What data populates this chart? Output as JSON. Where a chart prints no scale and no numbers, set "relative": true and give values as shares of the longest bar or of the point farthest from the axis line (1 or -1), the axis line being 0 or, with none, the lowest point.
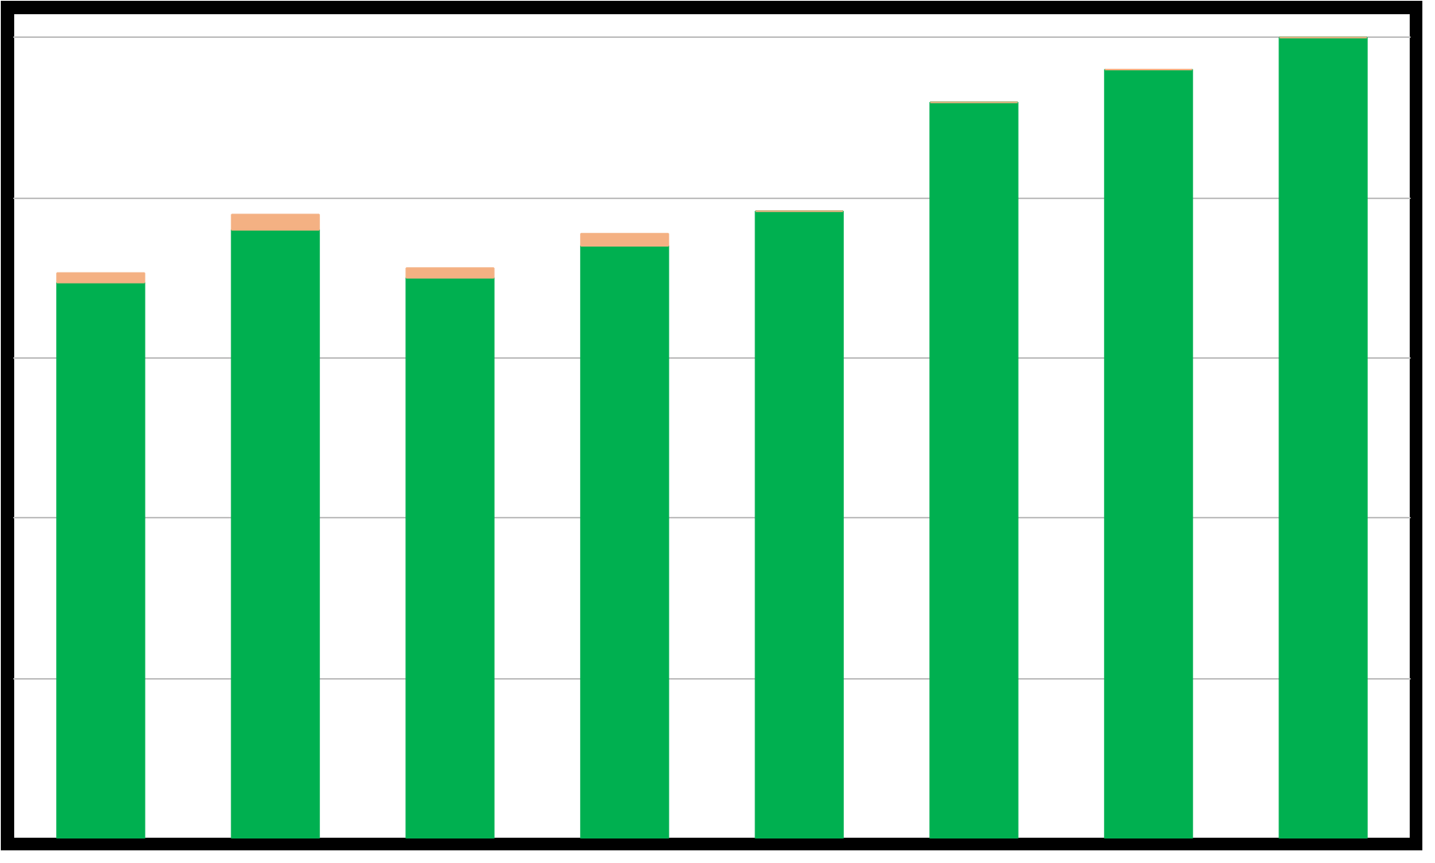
{
  "chart_data": {
    "type": "bar",
    "relative": true,
    "stacked": true,
    "grid": "y",
    "categories": [
      null,
      null,
      null,
      null,
      null,
      null,
      null,
      null
    ],
    "series": [
      {
        "color": "#00b050",
        "values": [
          0.694,
          0.76,
          0.7,
          0.74,
          0.783,
          0.919,
          0.96,
          1.0
        ]
      },
      {
        "color": "#f4b183",
        "values": [
          0.012,
          0.019,
          0.012,
          0.015,
          0,
          0,
          0,
          0
        ]
      }
    ]
  }
}
